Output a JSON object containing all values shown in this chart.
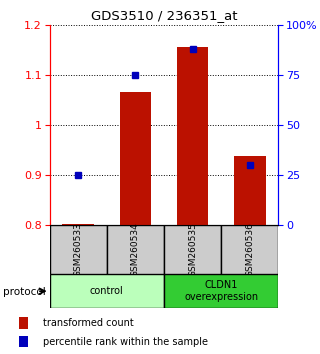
{
  "title": "GDS3510 / 236351_at",
  "samples": [
    "GSM260533",
    "GSM260534",
    "GSM260535",
    "GSM260536"
  ],
  "red_values": [
    0.802,
    1.065,
    1.155,
    0.937
  ],
  "blue_percentiles": [
    25,
    75,
    88,
    30
  ],
  "ylim_left": [
    0.8,
    1.2
  ],
  "ylim_right": [
    0,
    100
  ],
  "yticks_left": [
    0.8,
    0.9,
    1.0,
    1.1,
    1.2
  ],
  "ytick_labels_left": [
    "0.8",
    "0.9",
    "1",
    "1.1",
    "1.2"
  ],
  "yticks_right_pct": [
    0,
    25,
    50,
    75,
    100
  ],
  "ytick_labels_right": [
    "0",
    "25",
    "50",
    "75",
    "100%"
  ],
  "bar_color": "#bb1100",
  "dot_color": "#0000bb",
  "bar_base": 0.8,
  "protocol_groups": [
    {
      "label": "control",
      "samples": [
        0,
        1
      ],
      "color": "#bbffbb"
    },
    {
      "label": "CLDN1\noverexpression",
      "samples": [
        2,
        3
      ],
      "color": "#33cc33"
    }
  ],
  "sample_box_color": "#cccccc",
  "sample_box_edge": "#000000",
  "background_color": "#ffffff",
  "legend_red_label": "transformed count",
  "legend_blue_label": "percentile rank within the sample",
  "bar_width": 0.55,
  "dot_size": 5
}
